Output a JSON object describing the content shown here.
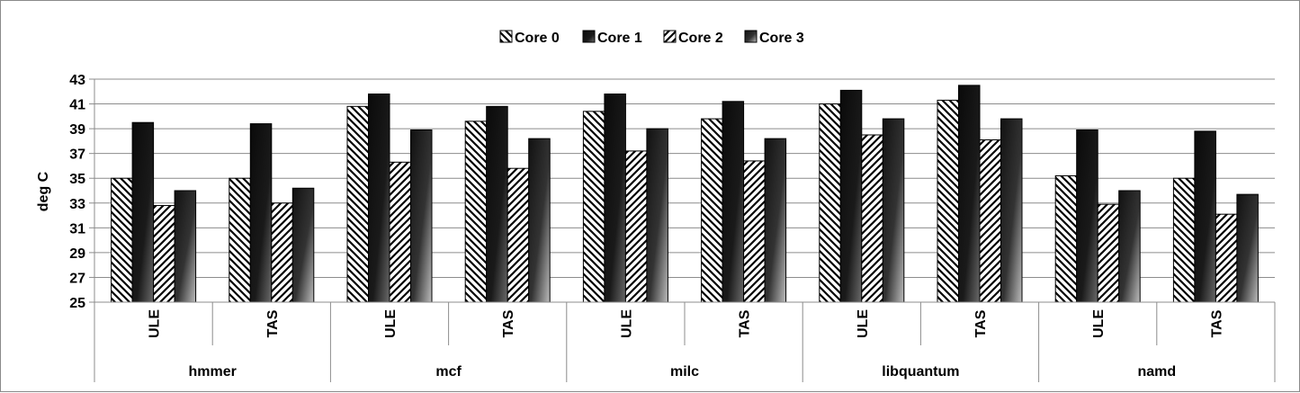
{
  "chart_data": {
    "type": "bar",
    "title": "",
    "ylabel": "deg C",
    "ylim": [
      25,
      43
    ],
    "yticks": [
      "25",
      "27",
      "29",
      "31",
      "33",
      "35",
      "37",
      "39",
      "41",
      "43"
    ],
    "grid": "horizontal",
    "legend_position": "top",
    "groups": [
      "hmmer",
      "mcf",
      "milc",
      "libquantum",
      "namd"
    ],
    "subcategories": [
      "ULE",
      "TAS"
    ],
    "categories": [
      "hmmer ULE",
      "hmmer TAS",
      "mcf ULE",
      "mcf TAS",
      "milc ULE",
      "milc TAS",
      "libquantum ULE",
      "libquantum TAS",
      "namd ULE",
      "namd TAS"
    ],
    "series": [
      {
        "name": "Core 0",
        "pattern": "diagonal-hatch-down",
        "values": [
          35.0,
          35.0,
          40.8,
          39.6,
          40.4,
          39.8,
          41.0,
          41.3,
          35.2,
          35.0
        ]
      },
      {
        "name": "Core 1",
        "pattern": "black-gradient",
        "values": [
          39.5,
          39.4,
          41.8,
          40.8,
          41.8,
          41.2,
          42.1,
          42.5,
          38.9,
          38.8
        ]
      },
      {
        "name": "Core 2",
        "pattern": "diagonal-hatch-up",
        "values": [
          32.8,
          33.0,
          36.3,
          35.8,
          37.2,
          36.4,
          38.5,
          38.1,
          32.9,
          32.1
        ]
      },
      {
        "name": "Core 3",
        "pattern": "gray-gradient",
        "values": [
          34.0,
          34.2,
          38.9,
          38.2,
          39.0,
          38.2,
          39.8,
          39.8,
          34.0,
          33.7
        ]
      }
    ]
  }
}
